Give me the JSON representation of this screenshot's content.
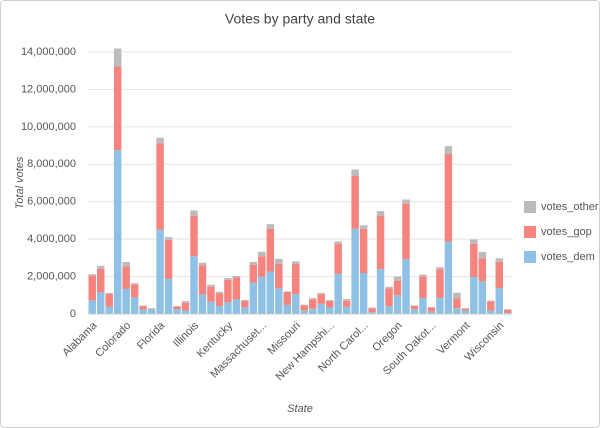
{
  "chart_data": {
    "type": "stacked_bar",
    "title": "Votes by party and state",
    "x_label": "State",
    "y_label": "Total votes",
    "categories": [
      "Alabama",
      null,
      null,
      null,
      "Colorado",
      null,
      null,
      null,
      "Florida",
      null,
      null,
      null,
      "Illinois",
      null,
      null,
      null,
      "Kentucky",
      null,
      null,
      null,
      "Massachuset...",
      null,
      null,
      null,
      "Missouri",
      null,
      null,
      null,
      "New Hampshi...",
      null,
      null,
      null,
      "North Carol...",
      null,
      null,
      null,
      "Oregon",
      null,
      null,
      null,
      "South Dakot...",
      null,
      null,
      null,
      "Vermont",
      null,
      null,
      null,
      "Wisconsin",
      null
    ],
    "series": [
      {
        "name": "votes_dem",
        "color": "#8ec1e5",
        "values": [
          730000,
          1161000,
          381000,
          8753000,
          1338000,
          897000,
          236000,
          283000,
          4504000,
          1878000,
          267000,
          190000,
          3091000,
          1033000,
          654000,
          427000,
          629000,
          780000,
          358000,
          1678000,
          1995000,
          2268000,
          1367000,
          485000,
          1071000,
          178000,
          284000,
          540000,
          349000,
          2149000,
          386000,
          4556000,
          2189000,
          94000,
          2395000,
          420000,
          1002000,
          2926000,
          253000,
          856000,
          117000,
          871000,
          3877000,
          311000,
          178000,
          1982000,
          1742000,
          189000,
          1383000,
          56000
        ]
      },
      {
        "name": "votes_gop",
        "color": "#f5837e",
        "values": [
          1319000,
          1252000,
          685000,
          4484000,
          1202000,
          673000,
          185000,
          13000,
          4617000,
          2089000,
          128000,
          409000,
          2146000,
          1557000,
          801000,
          671000,
          1203000,
          1179000,
          335000,
          943000,
          1091000,
          2280000,
          1323000,
          701000,
          1595000,
          279000,
          496000,
          512000,
          346000,
          1602000,
          320000,
          2819000,
          2363000,
          217000,
          2841000,
          949000,
          782000,
          2971000,
          180000,
          1155000,
          228000,
          1522000,
          4685000,
          515000,
          95000,
          1769000,
          1221000,
          489000,
          1405000,
          175000
        ]
      },
      {
        "name": "votes_other",
        "color": "#bbbbbb",
        "values": [
          76000,
          159000,
          65000,
          944000,
          238000,
          74000,
          23000,
          16000,
          297000,
          148000,
          34000,
          91000,
          299000,
          145000,
          111000,
          86000,
          92000,
          70000,
          55000,
          160000,
          239000,
          250000,
          254000,
          23000,
          143000,
          40000,
          64000,
          74000,
          49000,
          123000,
          93000,
          346000,
          189000,
          33000,
          261000,
          84000,
          217000,
          219000,
          31000,
          92000,
          25000,
          114000,
          406000,
          305000,
          43000,
          231000,
          354000,
          36000,
          188000,
          25000
        ]
      }
    ],
    "ylim": [
      0,
      14000000
    ],
    "yticks": [
      {
        "value": 0,
        "label": "0"
      },
      {
        "value": 2000000,
        "label": "2,000,000"
      },
      {
        "value": 4000000,
        "label": "4,000,000"
      },
      {
        "value": 6000000,
        "label": "6,000,000"
      },
      {
        "value": 8000000,
        "label": "8,000,000"
      },
      {
        "value": 10000000,
        "label": "10,000,000"
      },
      {
        "value": 12000000,
        "label": "12,000,000"
      },
      {
        "value": 14000000,
        "label": "14,000,000"
      }
    ],
    "grid": true,
    "legend": "right"
  }
}
